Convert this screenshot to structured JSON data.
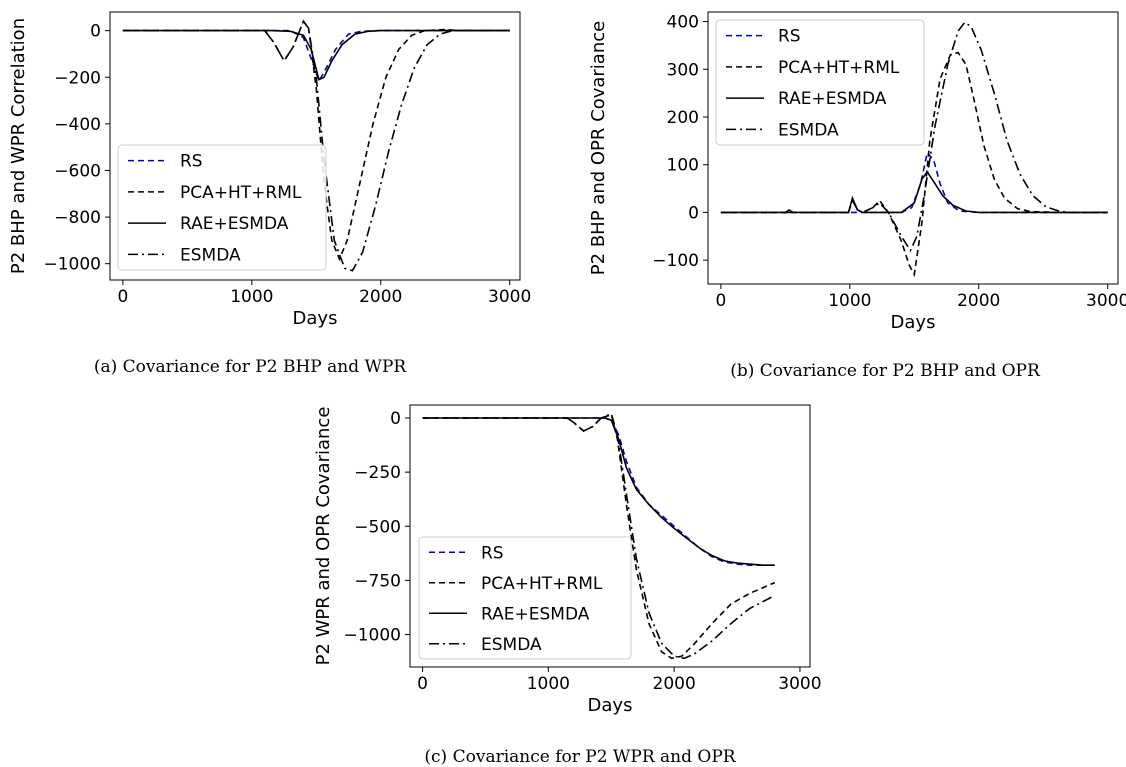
{
  "legend_entries": [
    "RS",
    "PCA+HT+RML",
    "RAE+ESMDA",
    "ESMDA"
  ],
  "series_styles": {
    "RS": {
      "color": "#0000cc",
      "dash": "6,4"
    },
    "PCA+HT+RML": {
      "color": "#000000",
      "dash": "6,4"
    },
    "RAE+ESMDA": {
      "color": "#000000",
      "dash": ""
    },
    "ESMDA": {
      "color": "#000000",
      "dash": "10,4,2,4"
    }
  },
  "chart_data": [
    {
      "id": "a",
      "type": "line",
      "caption": "(a) Covariance for P2 BHP and WPR",
      "xlabel": "Days",
      "ylabel": "P2 BHP and WPR Correlation",
      "xlim": [
        -100,
        3080
      ],
      "ylim": [
        -1070,
        80
      ],
      "xticks": [
        0,
        1000,
        2000,
        3000
      ],
      "yticks": [
        0,
        -200,
        -400,
        -600,
        -800,
        -1000
      ],
      "legend": "lower-left",
      "series": [
        {
          "name": "RS",
          "points": [
            [
              0,
              0
            ],
            [
              1300,
              0
            ],
            [
              1400,
              -30
            ],
            [
              1480,
              -150
            ],
            [
              1520,
              -215
            ],
            [
              1560,
              -180
            ],
            [
              1650,
              -80
            ],
            [
              1750,
              -15
            ],
            [
              1850,
              -3
            ],
            [
              2000,
              0
            ],
            [
              3000,
              0
            ]
          ]
        },
        {
          "name": "PCA+HT+RML",
          "points": [
            [
              0,
              0
            ],
            [
              1100,
              0
            ],
            [
              1170,
              -50
            ],
            [
              1250,
              -130
            ],
            [
              1320,
              -70
            ],
            [
              1400,
              40
            ],
            [
              1440,
              10
            ],
            [
              1500,
              -250
            ],
            [
              1560,
              -650
            ],
            [
              1620,
              -900
            ],
            [
              1680,
              -980
            ],
            [
              1740,
              -900
            ],
            [
              1840,
              -650
            ],
            [
              1940,
              -400
            ],
            [
              2040,
              -200
            ],
            [
              2140,
              -80
            ],
            [
              2240,
              -20
            ],
            [
              2340,
              0
            ],
            [
              2500,
              5
            ],
            [
              2600,
              0
            ],
            [
              3000,
              0
            ]
          ]
        },
        {
          "name": "RAE+ESMDA",
          "points": [
            [
              0,
              0
            ],
            [
              1150,
              0
            ],
            [
              1300,
              -3
            ],
            [
              1400,
              -20
            ],
            [
              1460,
              -80
            ],
            [
              1520,
              -210
            ],
            [
              1560,
              -200
            ],
            [
              1620,
              -130
            ],
            [
              1700,
              -60
            ],
            [
              1800,
              -15
            ],
            [
              1900,
              -3
            ],
            [
              2000,
              0
            ],
            [
              3000,
              0
            ]
          ]
        },
        {
          "name": "ESMDA",
          "points": [
            [
              0,
              0
            ],
            [
              1100,
              0
            ],
            [
              1170,
              -50
            ],
            [
              1250,
              -130
            ],
            [
              1320,
              -70
            ],
            [
              1400,
              40
            ],
            [
              1440,
              10
            ],
            [
              1500,
              -200
            ],
            [
              1560,
              -550
            ],
            [
              1640,
              -900
            ],
            [
              1720,
              -1020
            ],
            [
              1780,
              -1030
            ],
            [
              1860,
              -950
            ],
            [
              1960,
              -750
            ],
            [
              2060,
              -520
            ],
            [
              2160,
              -320
            ],
            [
              2260,
              -160
            ],
            [
              2360,
              -60
            ],
            [
              2460,
              -15
            ],
            [
              2560,
              0
            ],
            [
              3000,
              0
            ]
          ]
        }
      ]
    },
    {
      "id": "b",
      "type": "line",
      "caption": "(b) Covariance for P2 BHP and OPR",
      "xlabel": "Days",
      "ylabel": "P2 BHP and OPR Covariance",
      "xlim": [
        -100,
        3080
      ],
      "ylim": [
        -150,
        420
      ],
      "xticks": [
        0,
        1000,
        2000,
        3000
      ],
      "yticks": [
        -100,
        0,
        100,
        200,
        300,
        400
      ],
      "legend": "top-left",
      "series": [
        {
          "name": "RS",
          "points": [
            [
              0,
              0
            ],
            [
              1400,
              0
            ],
            [
              1480,
              10
            ],
            [
              1550,
              60
            ],
            [
              1600,
              125
            ],
            [
              1650,
              110
            ],
            [
              1700,
              60
            ],
            [
              1760,
              20
            ],
            [
              1850,
              3
            ],
            [
              2000,
              0
            ],
            [
              3000,
              0
            ]
          ]
        },
        {
          "name": "PCA+HT+RML",
          "points": [
            [
              0,
              0
            ],
            [
              500,
              0
            ],
            [
              530,
              5
            ],
            [
              560,
              0
            ],
            [
              990,
              0
            ],
            [
              1020,
              25
            ],
            [
              1060,
              5
            ],
            [
              1100,
              0
            ],
            [
              1180,
              10
            ],
            [
              1230,
              25
            ],
            [
              1300,
              0
            ],
            [
              1400,
              -60
            ],
            [
              1460,
              -110
            ],
            [
              1500,
              -130
            ],
            [
              1560,
              -20
            ],
            [
              1620,
              150
            ],
            [
              1700,
              280
            ],
            [
              1780,
              330
            ],
            [
              1840,
              335
            ],
            [
              1900,
              310
            ],
            [
              1960,
              240
            ],
            [
              2040,
              140
            ],
            [
              2120,
              70
            ],
            [
              2200,
              30
            ],
            [
              2300,
              8
            ],
            [
              2400,
              2
            ],
            [
              2600,
              0
            ],
            [
              3000,
              0
            ]
          ]
        },
        {
          "name": "RAE+ESMDA",
          "points": [
            [
              0,
              0
            ],
            [
              990,
              0
            ],
            [
              1020,
              30
            ],
            [
              1060,
              5
            ],
            [
              1100,
              0
            ],
            [
              1400,
              0
            ],
            [
              1500,
              20
            ],
            [
              1560,
              70
            ],
            [
              1600,
              85
            ],
            [
              1650,
              65
            ],
            [
              1720,
              35
            ],
            [
              1800,
              15
            ],
            [
              1900,
              3
            ],
            [
              2000,
              0
            ],
            [
              3000,
              0
            ]
          ]
        },
        {
          "name": "ESMDA",
          "points": [
            [
              0,
              0
            ],
            [
              500,
              0
            ],
            [
              530,
              5
            ],
            [
              560,
              0
            ],
            [
              990,
              0
            ],
            [
              1020,
              25
            ],
            [
              1060,
              5
            ],
            [
              1100,
              0
            ],
            [
              1180,
              10
            ],
            [
              1230,
              20
            ],
            [
              1300,
              0
            ],
            [
              1400,
              -50
            ],
            [
              1470,
              -80
            ],
            [
              1520,
              -50
            ],
            [
              1580,
              40
            ],
            [
              1660,
              180
            ],
            [
              1760,
              310
            ],
            [
              1840,
              380
            ],
            [
              1890,
              398
            ],
            [
              1940,
              390
            ],
            [
              2020,
              340
            ],
            [
              2120,
              250
            ],
            [
              2220,
              150
            ],
            [
              2320,
              80
            ],
            [
              2420,
              35
            ],
            [
              2520,
              12
            ],
            [
              2620,
              3
            ],
            [
              2700,
              0
            ],
            [
              3000,
              0
            ]
          ]
        }
      ]
    },
    {
      "id": "c",
      "type": "line",
      "caption": "(c) Covariance for P2 WPR and OPR",
      "xlabel": "Days",
      "ylabel": "P2 WPR and OPR Covariance",
      "xlim": [
        -100,
        3080
      ],
      "ylim": [
        -1150,
        60
      ],
      "xticks": [
        0,
        1000,
        2000,
        3000
      ],
      "yticks": [
        0,
        -250,
        -500,
        -750,
        -1000
      ],
      "legend": "lower-left",
      "series": [
        {
          "name": "RS",
          "points": [
            [
              0,
              0
            ],
            [
              1450,
              0
            ],
            [
              1500,
              -10
            ],
            [
              1560,
              -80
            ],
            [
              1620,
              -200
            ],
            [
              1700,
              -320
            ],
            [
              1800,
              -400
            ],
            [
              1900,
              -450
            ],
            [
              2000,
              -500
            ],
            [
              2100,
              -550
            ],
            [
              2200,
              -600
            ],
            [
              2300,
              -640
            ],
            [
              2400,
              -665
            ],
            [
              2500,
              -675
            ],
            [
              2600,
              -680
            ],
            [
              2700,
              -680
            ],
            [
              2800,
              -680
            ]
          ]
        },
        {
          "name": "PCA+HT+RML",
          "points": [
            [
              0,
              0
            ],
            [
              1150,
              0
            ],
            [
              1200,
              -20
            ],
            [
              1280,
              -60
            ],
            [
              1350,
              -40
            ],
            [
              1420,
              0
            ],
            [
              1500,
              15
            ],
            [
              1550,
              -100
            ],
            [
              1620,
              -400
            ],
            [
              1700,
              -700
            ],
            [
              1800,
              -950
            ],
            [
              1900,
              -1080
            ],
            [
              1980,
              -1110
            ],
            [
              2060,
              -1100
            ],
            [
              2150,
              -1050
            ],
            [
              2300,
              -950
            ],
            [
              2450,
              -860
            ],
            [
              2600,
              -810
            ],
            [
              2800,
              -760
            ]
          ]
        },
        {
          "name": "RAE+ESMDA",
          "points": [
            [
              0,
              0
            ],
            [
              1450,
              0
            ],
            [
              1500,
              -10
            ],
            [
              1560,
              -100
            ],
            [
              1620,
              -230
            ],
            [
              1700,
              -330
            ],
            [
              1800,
              -400
            ],
            [
              1900,
              -460
            ],
            [
              2000,
              -510
            ],
            [
              2100,
              -555
            ],
            [
              2200,
              -600
            ],
            [
              2300,
              -635
            ],
            [
              2400,
              -660
            ],
            [
              2500,
              -670
            ],
            [
              2600,
              -675
            ],
            [
              2700,
              -680
            ],
            [
              2800,
              -680
            ]
          ]
        },
        {
          "name": "ESMDA",
          "points": [
            [
              0,
              0
            ],
            [
              1150,
              0
            ],
            [
              1200,
              -20
            ],
            [
              1280,
              -60
            ],
            [
              1350,
              -40
            ],
            [
              1420,
              0
            ],
            [
              1500,
              20
            ],
            [
              1550,
              -80
            ],
            [
              1620,
              -350
            ],
            [
              1700,
              -650
            ],
            [
              1800,
              -900
            ],
            [
              1900,
              -1040
            ],
            [
              2000,
              -1100
            ],
            [
              2080,
              -1110
            ],
            [
              2160,
              -1090
            ],
            [
              2300,
              -1030
            ],
            [
              2450,
              -950
            ],
            [
              2600,
              -880
            ],
            [
              2800,
              -820
            ]
          ]
        }
      ]
    }
  ]
}
